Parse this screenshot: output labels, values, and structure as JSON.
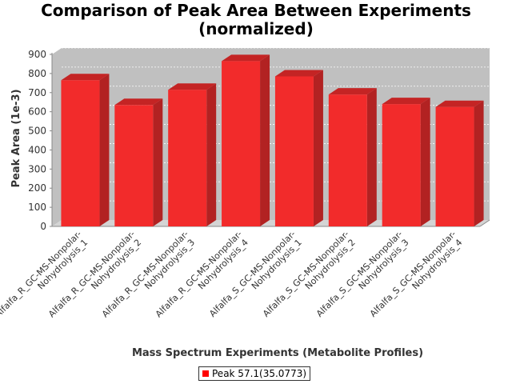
{
  "chart_data": {
    "type": "bar",
    "title_lines": [
      "Comparison of Peak Area Between Experiments",
      "(normalized)"
    ],
    "xlabel": "Mass Spectrum Experiments (Metabolite Profiles)",
    "ylabel": "Peak Area (1e-3)",
    "ylim": [
      0,
      900
    ],
    "yticks": [
      "0",
      "100",
      "200",
      "300",
      "400",
      "500",
      "600",
      "700",
      "800",
      "900"
    ],
    "grid": true,
    "legend_position": "bottom",
    "categories": [
      [
        "Alfalfa_R_GC-MS-Nonpolar-",
        "Nohydrolysis_1"
      ],
      [
        "Alfalfa_R_GC-MS-Nonpolar-",
        "Nohydrolysis_2"
      ],
      [
        "Alfalfa_R_GC-MS-Nonpolar-",
        "Nohydrolysis_3"
      ],
      [
        "Alfalfa_R_GC-MS-Nonpolar-",
        "Nohydrolysis_4"
      ],
      [
        "Alfalfa_S_GC-MS-Nonpolar-",
        "Nohydrolysis_1"
      ],
      [
        "Alfalfa_S_GC-MS-Nonpolar-",
        "Nohydrolysis_2"
      ],
      [
        "Alfalfa_S_GC-MS-Nonpolar-",
        "Nohydrolysis_3"
      ],
      [
        "Alfalfa_S_GC-MS-Nonpolar-",
        "Nohydrolysis_4"
      ]
    ],
    "series": [
      {
        "name": "Peak 57.1(35.0773)",
        "color": "#ff0000",
        "values": [
          765,
          635,
          715,
          865,
          785,
          690,
          640,
          625
        ]
      }
    ]
  }
}
